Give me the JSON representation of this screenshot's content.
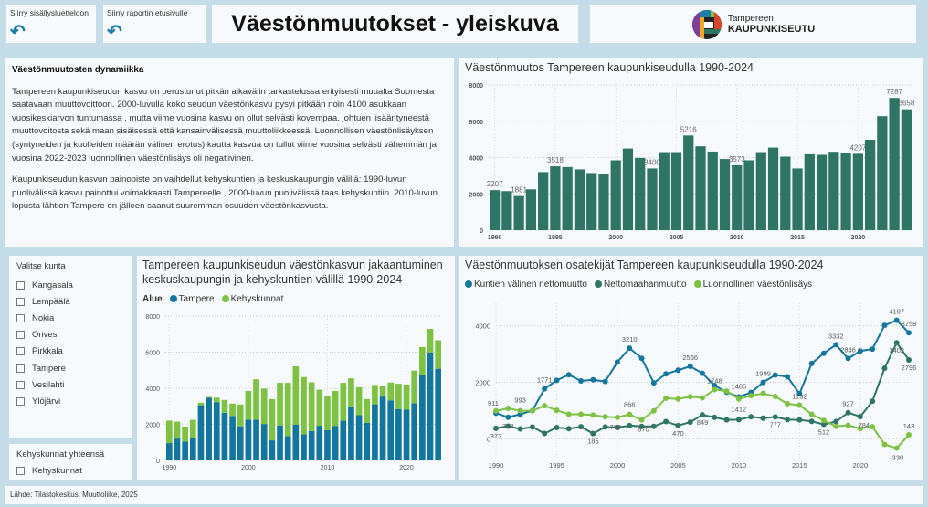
{
  "nav": [
    {
      "label": "Siirry sisällysluetteloon",
      "icon": "undo-arrow-icon"
    },
    {
      "label": "Siirry raportin etusivulle",
      "icon": "undo-arrow-icon"
    }
  ],
  "title": "Väestönmuutokset - yleiskuva",
  "logo": {
    "line1": "Tampereen",
    "line2": "KAUPUNKISEUTU"
  },
  "text": {
    "heading": "Väestönmuutosten dynamiikka",
    "p1": "Tampereen kaupunkiseudun kasvu on perustunut pitkän aikavälin tarkastelussa erityisesti muualta Suomesta saatavaan muuttovoittoon. 2000-luvulla koko seudun väestönkasvu pysyi pitkään noin 4100 asukkaan vuosikeskiarvon tuntumassa , mutta viime vuosina kasvu on ollut selvästi kovempaa, johtuen lisääntyneestä muuttovoitosta sekä maan sisäisessä että kansainvälisessä muuttoliikkeessä. Luonnollisen väestönlisäyksen (syntyneiden ja kuolleiden määrän välinen erotus) kautta kasvua on tullut viime vuosina selvästi vähemmän ja vuosina 2022-2023 luonnollinen väestönlisäys oli negatiivinen.",
    "p2": "Kaupunkiseudun kasvun painopiste on vaihdellut kehyskuntien ja keskuskaupungin välillä: 1990-luvun puolivälissä kasvu painottui voimakkaasti Tampereelle , 2000-luvun puolivälissä taas kehyskuntiin. 2010-luvun lopusta lähtien Tampere on jälleen saanut suuremman osuuden väestönkasvusta."
  },
  "slicer": {
    "title": "Valitse kunta",
    "options": [
      "Kangasala",
      "Lempäälä",
      "Nokia",
      "Orivesi",
      "Pirkkala",
      "Tampere",
      "Vesilahti",
      "Ylöjärvi"
    ]
  },
  "slicer2": {
    "title": "Kehyskunnat yhteensä",
    "options": [
      "Kehyskunnat"
    ]
  },
  "footer": "Lähde: Tilastokeskus, Muuttoliike, 2025",
  "chart_data": [
    {
      "type": "bar",
      "title": "Väestönmuutos Tampereen kaupunkiseudulla 1990-2024",
      "ylim": [
        0,
        8000
      ],
      "yticks": [
        0,
        2000,
        4000,
        6000,
        8000
      ],
      "xticks": [
        1990,
        1995,
        2000,
        2005,
        2010,
        2015,
        2020
      ],
      "grid": true,
      "color": "#2e7565",
      "x": [
        1990,
        1991,
        1992,
        1993,
        1994,
        1995,
        1996,
        1997,
        1998,
        1999,
        2000,
        2001,
        2002,
        2003,
        2004,
        2005,
        2006,
        2007,
        2008,
        2009,
        2010,
        2011,
        2012,
        2013,
        2014,
        2015,
        2016,
        2017,
        2018,
        2019,
        2020,
        2021,
        2022,
        2023,
        2024
      ],
      "values": [
        2207,
        2150,
        1881,
        2250,
        3200,
        3518,
        3480,
        3350,
        3150,
        3100,
        3850,
        4500,
        3980,
        3400,
        4300,
        4300,
        5216,
        4620,
        4330,
        3920,
        3573,
        3850,
        4300,
        4550,
        4050,
        3400,
        4180,
        4150,
        4320,
        4250,
        4207,
        4980,
        6280,
        7287,
        6658
      ],
      "data_labels": {
        "1990": "2207",
        "1992": "1881",
        "1995": "3518",
        "2003": "3400",
        "2006": "5216",
        "2010": "3573",
        "2020": "4207",
        "2023": "7287",
        "2024": "6658"
      }
    },
    {
      "type": "bar",
      "stacked": true,
      "title": "Tampereen kaupunkiseudun väestönkasvun jakaantuminen keskuskaupungin ja kehyskuntien välillä 1990-2024",
      "legend_title": "Alue",
      "legend": "top-left",
      "ylim": [
        0,
        8000
      ],
      "yticks": [
        0,
        2000,
        4000,
        6000,
        8000
      ],
      "xticks": [
        1990,
        2000,
        2010,
        2020
      ],
      "grid": true,
      "x": [
        1990,
        1991,
        1992,
        1993,
        1994,
        1995,
        1996,
        1997,
        1998,
        1999,
        2000,
        2001,
        2002,
        2003,
        2004,
        2005,
        2006,
        2007,
        2008,
        2009,
        2010,
        2011,
        2012,
        2013,
        2014,
        2015,
        2016,
        2017,
        2018,
        2019,
        2020,
        2021,
        2022,
        2023,
        2024
      ],
      "series": [
        {
          "name": "Tampere",
          "color": "#13769e",
          "values": [
            960,
            1210,
            1040,
            1250,
            3060,
            3470,
            3230,
            2640,
            2470,
            1890,
            2260,
            2260,
            2020,
            1110,
            1940,
            1350,
            1990,
            1450,
            1630,
            1920,
            1670,
            1900,
            2200,
            3000,
            2510,
            2090,
            3110,
            3540,
            3330,
            2850,
            2810,
            3170,
            4730,
            5990,
            5080
          ]
        },
        {
          "name": "Kehyskunnat",
          "color": "#7dc242",
          "values": [
            1247,
            940,
            841,
            1000,
            140,
            48,
            250,
            710,
            680,
            1210,
            1590,
            2240,
            1960,
            2290,
            2360,
            2950,
            3226,
            3170,
            2700,
            2000,
            1903,
            1950,
            2100,
            1550,
            1540,
            1310,
            1070,
            610,
            990,
            1400,
            1397,
            1810,
            1550,
            1297,
            1578
          ]
        }
      ]
    },
    {
      "type": "line",
      "title": "Väestönmuutoksen osatekijät Tampereen kaupunkiseudulla 1990-2024",
      "legend": "top-left",
      "ylim": [
        -700,
        4800
      ],
      "yticks": [
        0,
        2000,
        4000
      ],
      "xticks": [
        1990,
        1995,
        2000,
        2005,
        2010,
        2015,
        2020
      ],
      "grid": true,
      "x": [
        1990,
        1991,
        1992,
        1993,
        1994,
        1995,
        1996,
        1997,
        1998,
        1999,
        2000,
        2001,
        2002,
        2003,
        2004,
        2005,
        2006,
        2007,
        2008,
        2009,
        2010,
        2011,
        2012,
        2013,
        2014,
        2015,
        2016,
        2017,
        2018,
        2019,
        2020,
        2021,
        2022,
        2023,
        2024
      ],
      "series": [
        {
          "name": "Kuntien välinen nettomuutto",
          "color": "#13769e",
          "values": [
            911,
            763,
            870,
            1000,
            1771,
            2070,
            2270,
            2050,
            2090,
            2030,
            2720,
            3210,
            2850,
            1980,
            2300,
            2430,
            2566,
            2320,
            1890,
            1650,
            1485,
            1640,
            1999,
            2260,
            2200,
            1600,
            2670,
            3030,
            3332,
            2846,
            3110,
            3180,
            4020,
            4197,
            3758
          ],
          "labels": {
            "1990": "911",
            "1991": "763",
            "1994": "1771",
            "2001": "3210",
            "2006": "2566",
            "2010": "1485",
            "2012": "1999",
            "2018": "3332",
            "2019": "2846",
            "2023": "4197",
            "2024": "3758"
          }
        },
        {
          "name": "Nettomaahanmuutto",
          "color": "#2e7565",
          "values": [
            373,
            450,
            350,
            420,
            190,
            400,
            360,
            430,
            185,
            420,
            400,
            470,
            440,
            440,
            610,
            470,
            590,
            849,
            760,
            670,
            680,
            780,
            730,
            777,
            680,
            670,
            620,
            512,
            610,
            927,
            784,
            1330,
            2500,
            3402,
            2796
          ],
          "labels": {
            "1990": "373",
            "1998": "185",
            "2005": "470",
            "2007": "849",
            "2013": "777",
            "2017": "512",
            "2019": "927",
            "2020": "784",
            "2023": "3402",
            "2024": "2796"
          }
        },
        {
          "name": "Luonnollinen väestönlisäys",
          "color": "#7dc242",
          "values": [
            990,
            1080,
            993,
            993,
            1171,
            1010,
            870,
            870,
            840,
            780,
            760,
            866,
            670,
            990,
            1440,
            1410,
            1490,
            1450,
            1748,
            1690,
            1412,
            1530,
            1610,
            1500,
            1240,
            1192,
            870,
            650,
            440,
            480,
            360,
            430,
            -200,
            -330,
            143
          ],
          "labels": {
            "1992": "993",
            "2000": "760",
            "2001": "866",
            "2002": "670",
            "2008": "1748",
            "2010": "1412",
            "2015": "1192",
            "2023": "-330",
            "2024": "143"
          }
        }
      ]
    }
  ]
}
